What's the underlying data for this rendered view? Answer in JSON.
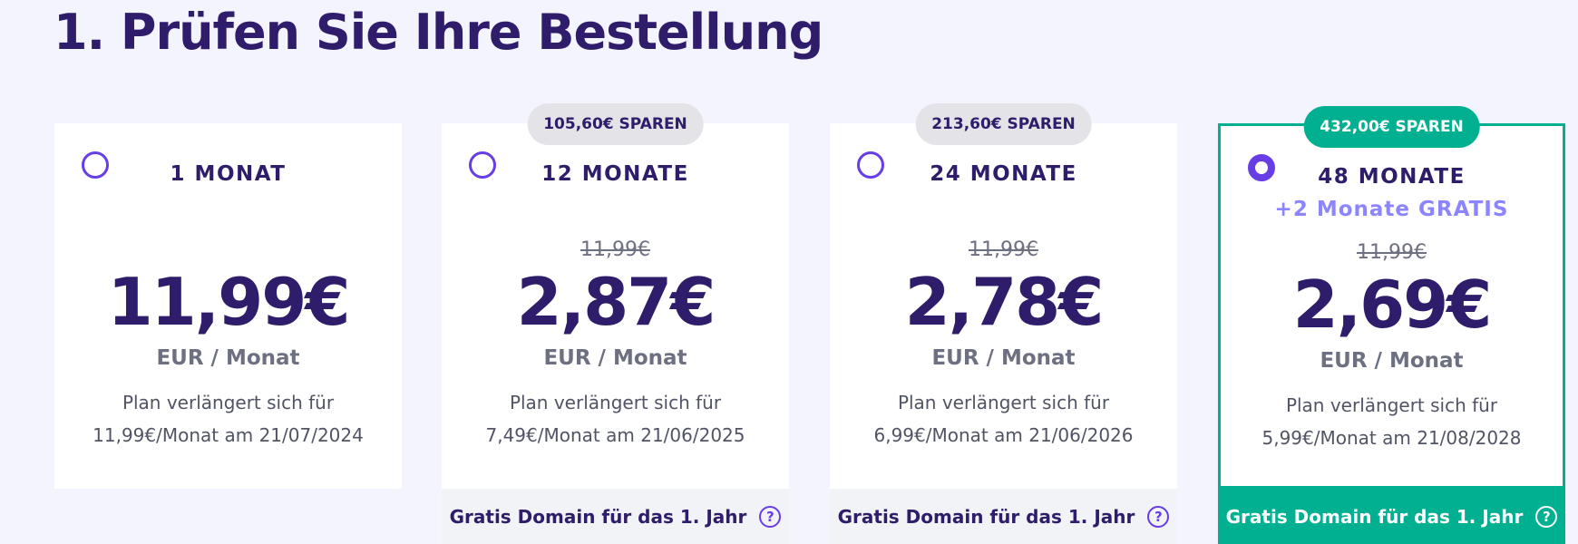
{
  "page": {
    "title": "1. Prüfen Sie Ihre Bestellung"
  },
  "plans": [
    {
      "term": "1 MONAT",
      "price": "11,99€",
      "unit": "EUR / Monat",
      "renew_line1": "Plan verlängert sich für",
      "renew_line2": "11,99€/Monat am 21/07/2024",
      "selected": false
    },
    {
      "badge": "105,60€ SPAREN",
      "term": "12 MONATE",
      "old_price": "11,99€",
      "price": "2,87€",
      "unit": "EUR / Monat",
      "renew_line1": "Plan verlängert sich für",
      "renew_line2": "7,49€/Monat am 21/06/2025",
      "domain": "Gratis Domain für das 1. Jahr",
      "selected": false
    },
    {
      "badge": "213,60€ SPAREN",
      "term": "24 MONATE",
      "old_price": "11,99€",
      "price": "2,78€",
      "unit": "EUR / Monat",
      "renew_line1": "Plan verlängert sich für",
      "renew_line2": "6,99€/Monat am 21/06/2026",
      "domain": "Gratis Domain für das 1. Jahr",
      "selected": false
    },
    {
      "badge": "432,00€ SPAREN",
      "term": "48 MONATE",
      "bonus": "+2 Monate GRATIS",
      "old_price": "11,99€",
      "price": "2,69€",
      "unit": "EUR / Monat",
      "renew_line1": "Plan verlängert sich für",
      "renew_line2": "5,99€/Monat am 21/08/2028",
      "domain": "Gratis Domain für das 1. Jahr",
      "selected": true
    }
  ],
  "help_icon_glyph": "?",
  "colors": {
    "accent": "#673de6",
    "selected": "#00b090",
    "heading": "#2f1c6a",
    "bonus": "#8c85ff"
  }
}
